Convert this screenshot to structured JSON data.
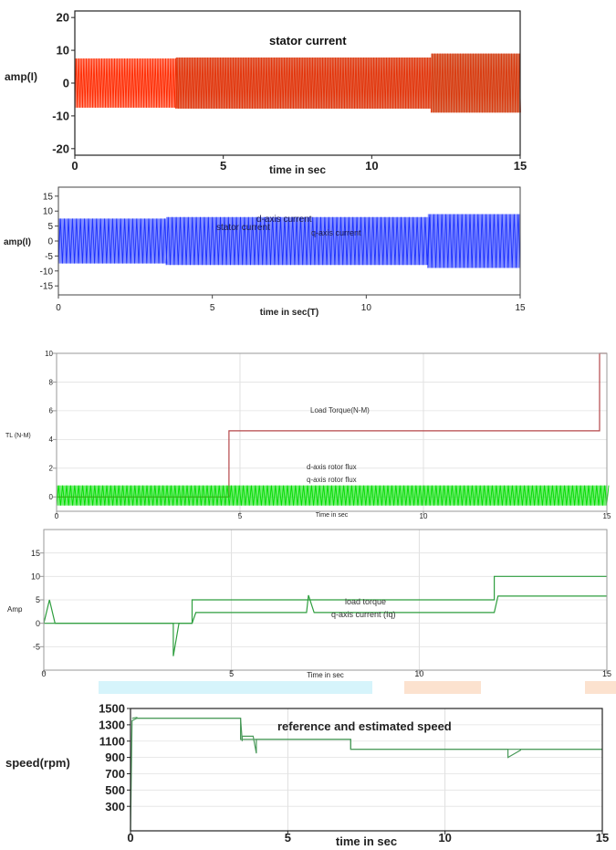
{
  "chart_data": [
    {
      "type": "line",
      "title": "",
      "xlabel": "time in sec",
      "ylabel": "amp(I)",
      "xlim": [
        0,
        15
      ],
      "ylim": [
        -22,
        22
      ],
      "xticks": [
        "0",
        "5",
        "10",
        "15"
      ],
      "yticks": [
        "20",
        "10",
        "0",
        "-10",
        "-20"
      ],
      "grid": false,
      "series": [
        {
          "name": "stator current",
          "color": "#ff2a00",
          "kind": "oscillation",
          "segments": [
            {
              "x": [
                0,
                3.4
              ],
              "amplitude": 7.5,
              "center": 0
            },
            {
              "x": [
                3.4,
                12
              ],
              "amplitude": 7.8,
              "center": 0
            },
            {
              "x": [
                12,
                15
              ],
              "amplitude": 9,
              "center": 0
            }
          ]
        }
      ]
    },
    {
      "type": "line",
      "title": "",
      "xlabel": "time in sec(T)",
      "ylabel": "amp(I)",
      "xlim": [
        0,
        15
      ],
      "ylim": [
        -18,
        18
      ],
      "xticks": [
        "0",
        "5",
        "10",
        "15"
      ],
      "yticks": [
        "15",
        "10",
        "5",
        "0",
        "-5",
        "-10",
        "-15"
      ],
      "grid": false,
      "series": [
        {
          "name": "d-axis current",
          "color": "#1a2fff",
          "kind": "oscillation",
          "segments": [
            {
              "x": [
                0,
                3.5
              ],
              "amplitude": 7.5,
              "center": 0
            },
            {
              "x": [
                3.5,
                12
              ],
              "amplitude": 8,
              "center": 0
            },
            {
              "x": [
                12,
                15
              ],
              "amplitude": 9,
              "center": 0
            }
          ]
        },
        {
          "name": "stator current",
          "color": "#1a2fff",
          "kind": "label"
        },
        {
          "name": "q-axis current",
          "color": "#1a2fff",
          "kind": "label"
        }
      ]
    },
    {
      "type": "line",
      "title": "",
      "xlabel": "Time in sec",
      "ylabel": "TL (N-M)",
      "xlim": [
        0,
        15
      ],
      "ylim": [
        -1,
        10
      ],
      "xticks": [
        "0",
        "5",
        "10",
        "15"
      ],
      "yticks": [
        "10",
        "8",
        "6",
        "4",
        "2",
        "0"
      ],
      "grid": true,
      "series": [
        {
          "name": "Load Torque(N-M)",
          "color": "#b5474a",
          "kind": "step",
          "x": [
            0,
            4.7,
            4.7,
            14.8,
            14.8,
            15
          ],
          "y": [
            0,
            0,
            4.6,
            4.6,
            10,
            10
          ]
        },
        {
          "name": "d-axis rotor flux",
          "color": "#00dd00",
          "kind": "oscillation",
          "segments": [
            {
              "x": [
                0,
                15
              ],
              "amplitude": 0.7,
              "center": 0.1
            }
          ]
        },
        {
          "name": "q-axis rotor flux",
          "color": "#00dd00",
          "kind": "label"
        }
      ]
    },
    {
      "type": "line",
      "title": "",
      "xlabel": "Time in sec",
      "ylabel": "Amp",
      "xlim": [
        0,
        15
      ],
      "ylim": [
        -10,
        20
      ],
      "xticks": [
        "0",
        "5",
        "10",
        "15"
      ],
      "yticks": [
        "15",
        "10",
        "5",
        "0",
        "-5"
      ],
      "grid": true,
      "series": [
        {
          "name": "load torque",
          "color": "#2e9e3e",
          "kind": "step",
          "x": [
            0,
            3.95,
            3.95,
            12,
            12,
            15
          ],
          "y": [
            0,
            0,
            5,
            5,
            10,
            10
          ]
        },
        {
          "name": "q-axis current (Iq)",
          "color": "#2e9e3e",
          "kind": "step",
          "x": [
            0,
            0.15,
            0.3,
            3.45,
            3.45,
            3.6,
            3.95,
            4.05,
            7.0,
            7.05,
            7.2,
            12,
            12.1,
            15
          ],
          "y": [
            0,
            5,
            0,
            0,
            -7,
            0,
            0,
            2.3,
            2.3,
            6,
            2.3,
            2.3,
            5.8,
            5.8
          ]
        }
      ]
    },
    {
      "type": "line",
      "title": "",
      "xlabel": "time in sec",
      "ylabel": "speed(rpm)",
      "xlim": [
        0,
        15
      ],
      "ylim": [
        0,
        1500
      ],
      "xticks": [
        "0",
        "5",
        "10",
        "15"
      ],
      "yticks": [
        "1500",
        "1300",
        "1100",
        "900",
        "700",
        "500",
        "300"
      ],
      "grid": true,
      "series": [
        {
          "name": "reference and estimated speed",
          "color": "#4a9a5a",
          "kind": "step",
          "x": [
            0,
            0.05,
            0.2,
            0.2,
            3.5,
            3.5,
            7.0,
            7.0,
            12.1,
            12.1,
            15
          ],
          "y": [
            0,
            1350,
            1380,
            1380,
            1380,
            1120,
            1120,
            1000,
            1000,
            1000,
            1000
          ]
        },
        {
          "name": "",
          "color": "#4a9a5a",
          "kind": "step",
          "x": [
            0.05,
            0.2,
            0.2,
            3.5,
            3.55,
            3.55,
            3.9,
            4.0,
            4.0,
            7.0,
            7.0,
            12,
            12,
            12.4,
            12.4,
            15
          ],
          "y": [
            1380,
            1390,
            1380,
            1380,
            1100,
            1160,
            1160,
            950,
            1120,
            1120,
            1000,
            1000,
            900,
            990,
            1000,
            1000
          ]
        }
      ]
    }
  ]
}
